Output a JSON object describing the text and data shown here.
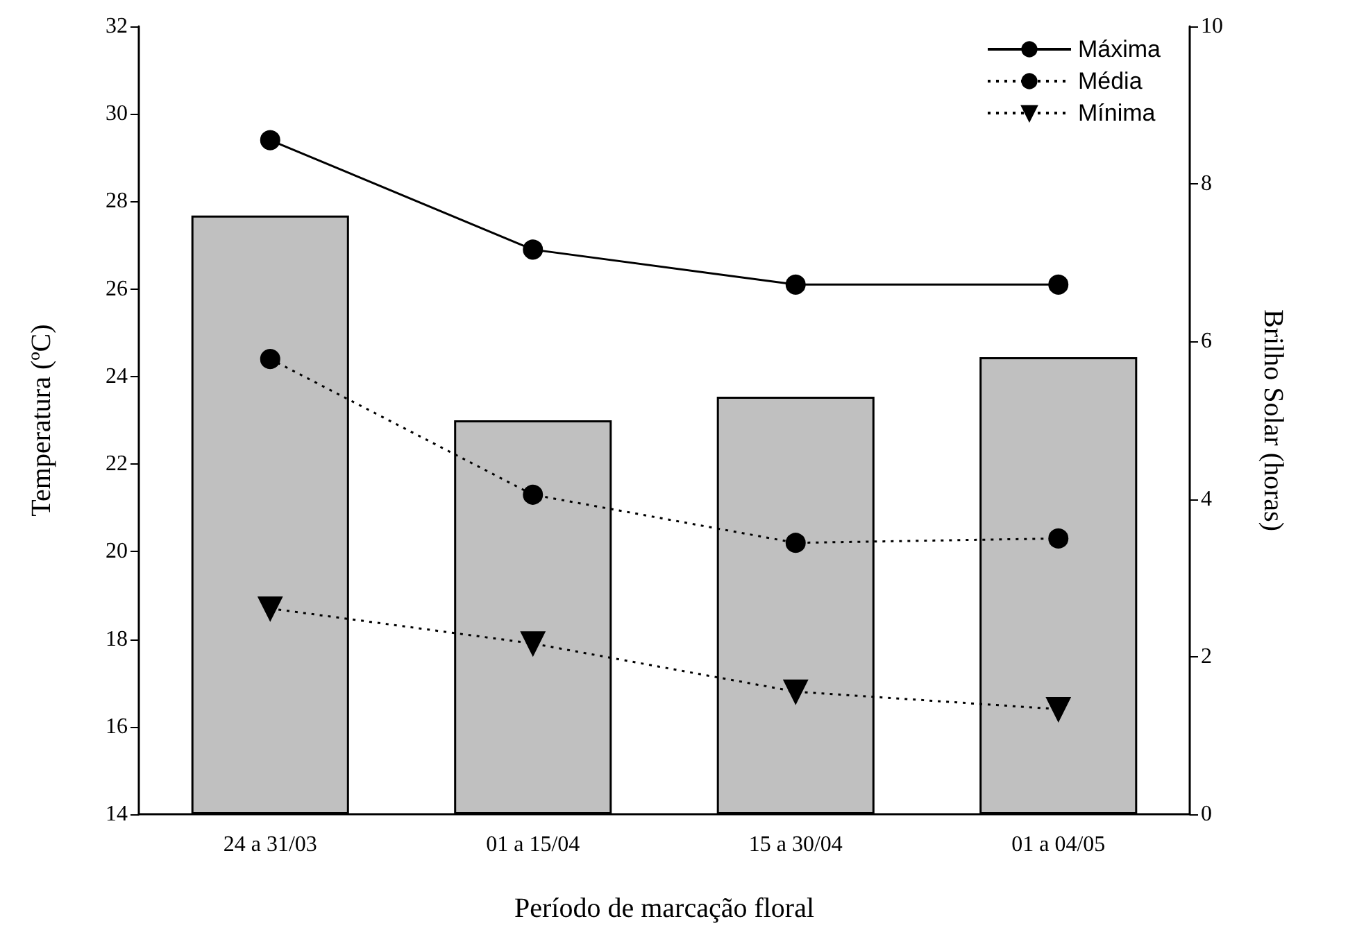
{
  "chart_data": {
    "type": "line",
    "xlabel": "Período de marcação floral",
    "ylabel": "Temperatura (ºC)",
    "y2label": "Brilho Solar (horas)",
    "categories": [
      "24 a 31/03",
      "01 a 15/04",
      "15 a 30/04",
      "01 a 04/05"
    ],
    "series": [
      {
        "type": "bar",
        "axis": "y2",
        "color": "#c0c0c0",
        "values": [
          7.6,
          5.0,
          5.3,
          5.8
        ]
      },
      {
        "name": "Máxima",
        "color": "#000000",
        "marker": "circle",
        "line_style": "solid",
        "values": [
          29.4,
          26.9,
          26.1,
          26.1
        ]
      },
      {
        "name": "Média",
        "color": "#000000",
        "marker": "circle",
        "line_style": "dotted",
        "values": [
          24.4,
          21.3,
          20.2,
          20.3
        ]
      },
      {
        "name": "Mínima",
        "color": "#000000",
        "marker": "triangle",
        "line_style": "dotted",
        "values": [
          18.7,
          17.9,
          16.8,
          16.4
        ]
      }
    ],
    "ylim": [
      14,
      32
    ],
    "yticks": [
      14,
      16,
      18,
      20,
      22,
      24,
      26,
      28,
      30,
      32
    ],
    "y2lim": [
      0,
      10
    ],
    "y2ticks": [
      0,
      2,
      4,
      6,
      8,
      10
    ],
    "grid": false,
    "legend": "top right"
  }
}
